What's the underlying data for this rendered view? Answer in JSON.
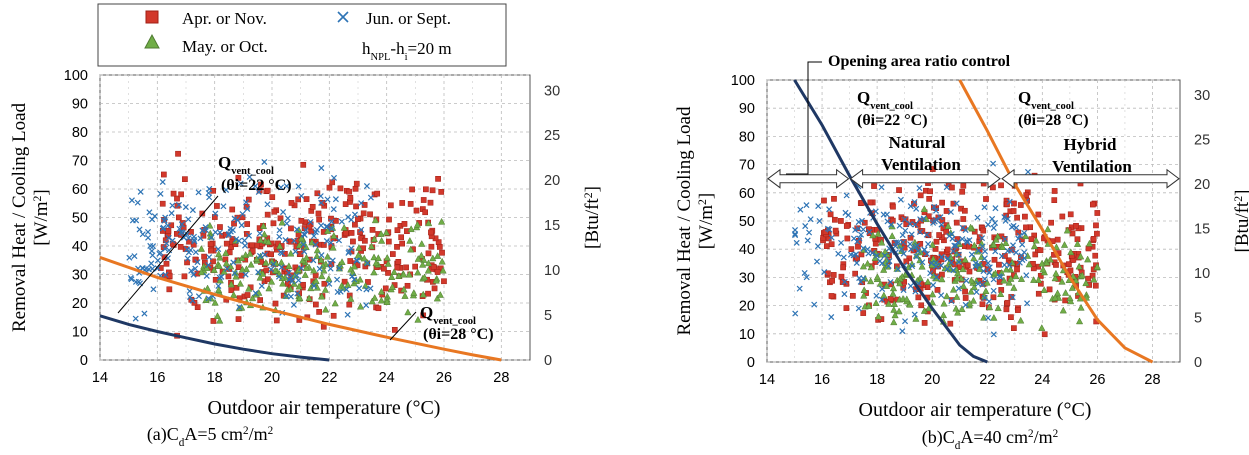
{
  "chart_data": [
    {
      "type": "scatter",
      "caption": {
        "pre": "(a)C",
        "sub": "d",
        "mid": "A=5 cm",
        "sup": "2",
        "tail": "/m",
        "sup2": "2"
      },
      "xlabel": "Outdoor air temperature (°C)",
      "ylabel": {
        "line1": "Removal Heat / Cooling Load",
        "line2a": "[W/m",
        "sup": "2",
        "line2b": "]"
      },
      "y2label": {
        "a": "[Btu/ft",
        "sup": "2",
        "b": "]"
      },
      "xlim": [
        14,
        29
      ],
      "ylim": [
        0,
        100
      ],
      "y2lim": [
        0,
        31.7
      ],
      "xticks": [
        "14",
        "16",
        "18",
        "20",
        "22",
        "24",
        "26",
        "28"
      ],
      "yticks": [
        "0",
        "10",
        "20",
        "30",
        "40",
        "50",
        "60",
        "70",
        "80",
        "90",
        "100"
      ],
      "y2ticks": [
        "0",
        "5",
        "10",
        "15",
        "20",
        "25",
        "30"
      ],
      "grid": true,
      "legend": {
        "placement": "top",
        "entries": [
          {
            "name": "Apr. or Nov.",
            "marker": "square",
            "color": "#d2382b"
          },
          {
            "name": "Jun. or Sept.",
            "marker": "x",
            "color": "#2e74b5"
          },
          {
            "name": "May. or Oct.",
            "marker": "triangle",
            "color": "#70ad47"
          }
        ],
        "note": {
          "main": "h",
          "sub1": "NPL",
          "mid": "-h",
          "sub2": "i",
          "tail": "=20 m"
        }
      },
      "series": [
        {
          "name": "Apr. or Nov.",
          "color": "#d2382b",
          "marker": "square",
          "x_range": [
            16,
            26
          ],
          "y_range": [
            5,
            74
          ],
          "count": 340,
          "seed": 11
        },
        {
          "name": "May. or Oct.",
          "color": "#70ad47",
          "marker": "triangle",
          "x_range": [
            17.5,
            26
          ],
          "y_range": [
            8,
            55
          ],
          "count": 210,
          "seed": 23
        },
        {
          "name": "Jun. or Sept.",
          "color": "#2e74b5",
          "marker": "x",
          "x_range": [
            15,
            23.5
          ],
          "y_range": [
            6,
            72
          ],
          "count": 230,
          "seed": 37
        }
      ],
      "curves": [
        {
          "label": "Q_vent_cool (θi=22 °C)",
          "color": "#1f3864",
          "x": [
            14,
            15,
            16,
            17,
            18,
            19,
            20,
            21,
            22
          ],
          "y": [
            15.5,
            12.5,
            10,
            7.8,
            5.6,
            3.8,
            2.2,
            1,
            0
          ]
        },
        {
          "label": "Q_vent_cool (θi=28 °C)",
          "color": "#e87722",
          "x": [
            14,
            16,
            18,
            20,
            22,
            24,
            26,
            27,
            28
          ],
          "y": [
            36,
            29,
            23,
            17.5,
            12.5,
            8,
            3.8,
            1.8,
            0
          ]
        }
      ],
      "annotations": [
        {
          "q": "Q",
          "sub": "vent_cool",
          "theta": "(θi=22 °C)"
        },
        {
          "q": "Q",
          "sub": "vent_cool",
          "theta": "(θi=28 °C)"
        }
      ]
    },
    {
      "type": "scatter",
      "caption": {
        "pre": "(b)C",
        "sub": "d",
        "mid": "A=40 cm",
        "sup": "2",
        "tail": "/m",
        "sup2": "2"
      },
      "xlabel": "Outdoor air temperature (°C)",
      "ylabel": {
        "line1": "Removal Heat / Cooling Load",
        "line2a": "[W/m",
        "sup": "2",
        "line2b": "]"
      },
      "y2label": {
        "a": "[Btu/ft",
        "sup": "2",
        "b": "]"
      },
      "xlim": [
        14,
        29
      ],
      "ylim": [
        0,
        100
      ],
      "y2lim": [
        0,
        31.7
      ],
      "xticks": [
        "14",
        "16",
        "18",
        "20",
        "22",
        "24",
        "26",
        "28"
      ],
      "yticks": [
        "0",
        "10",
        "20",
        "30",
        "40",
        "50",
        "60",
        "70",
        "80",
        "90",
        "100"
      ],
      "y2ticks": [
        "0",
        "5",
        "10",
        "15",
        "20",
        "25",
        "30"
      ],
      "grid": true,
      "series": [
        {
          "name": "Apr. or Nov.",
          "color": "#d2382b",
          "marker": "square",
          "x_range": [
            16,
            26
          ],
          "y_range": [
            5,
            74
          ],
          "count": 340,
          "seed": 51
        },
        {
          "name": "May. or Oct.",
          "color": "#70ad47",
          "marker": "triangle",
          "x_range": [
            17.5,
            26
          ],
          "y_range": [
            8,
            55
          ],
          "count": 210,
          "seed": 63
        },
        {
          "name": "Jun. or Sept.",
          "color": "#2e74b5",
          "marker": "x",
          "x_range": [
            15,
            23.5
          ],
          "y_range": [
            6,
            72
          ],
          "count": 230,
          "seed": 77
        }
      ],
      "curves": [
        {
          "label": "Q_vent_cool (θi=22 °C)",
          "color": "#1f3864",
          "x": [
            15,
            16,
            17,
            18,
            19,
            20,
            21,
            21.5,
            22
          ],
          "y": [
            100,
            84,
            66,
            49,
            33,
            19,
            6,
            2,
            0
          ]
        },
        {
          "label": "Q_vent_cool (θi=28 °C)",
          "color": "#e87722",
          "x": [
            21,
            22,
            23,
            24,
            25,
            26,
            27,
            28
          ],
          "y": [
            100,
            82,
            63,
            47,
            30,
            15,
            5,
            0
          ]
        }
      ],
      "annotations": [
        {
          "q": "Q",
          "sub": "vent_cool",
          "theta": "(θi=22 °C)"
        },
        {
          "q": "Q",
          "sub": "vent_cool",
          "theta": "(θi=28 °C)"
        },
        {
          "text": "Opening area ratio control"
        },
        {
          "line1": "Natural",
          "line2": "Ventilation"
        },
        {
          "line1": "Hybrid",
          "line2": "Ventilation"
        }
      ],
      "arrows_y_value": 65,
      "arrow_spans": [
        [
          14,
          17
        ],
        [
          17,
          22.5
        ],
        [
          22.5,
          29
        ]
      ]
    }
  ]
}
